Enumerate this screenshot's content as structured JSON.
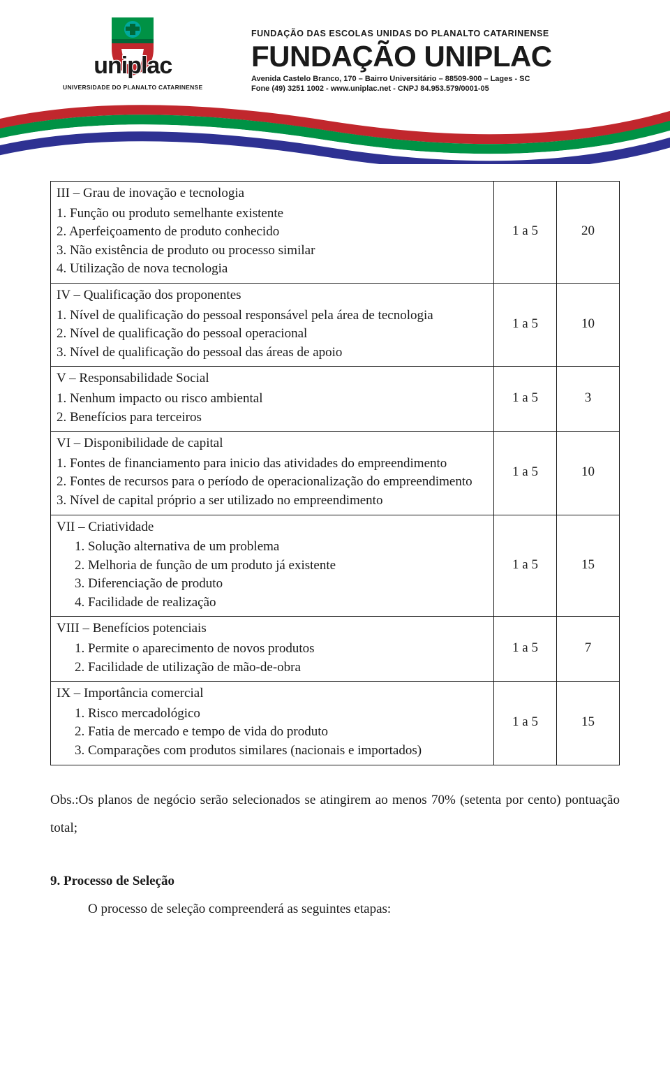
{
  "header": {
    "logo_text": "uniplac",
    "logo_subtitle": "UNIVERSIDADE DO PLANALTO CATARINENSE",
    "foundation_top": "FUNDAÇÃO DAS ESCOLAS UNIDAS DO PLANALTO CATARINENSE",
    "foundation_main": "FUNDAÇÃO UNIPLAC",
    "address_line1": "Avenida Castelo Branco, 170 – Bairro Universitário – 88509-900 – Lages - SC",
    "address_line2": "Fone (49) 3251 1002  -  www.uniplac.net  -  CNPJ 84.953.579/0001-05",
    "swoosh_colors": [
      "#c1272d",
      "#009245",
      "#2e3192",
      "#ffffff"
    ],
    "shield_colors": {
      "top": "#009245",
      "bottom": "#c1272d",
      "accent": "#006837",
      "bar": "#00a99d"
    }
  },
  "table": {
    "rows": [
      {
        "title": "III – Grau de inovação e tecnologia",
        "items": [
          "1.      Função ou produto semelhante existente",
          "2.      Aperfeiçoamento de produto conhecido",
          "3.      Não existência de produto ou processo similar",
          "4.      Utilização de nova tecnologia"
        ],
        "indent_class": "indent",
        "range": "1 a 5",
        "weight": "20"
      },
      {
        "title": "IV – Qualificação dos proponentes",
        "items": [
          "1.      Nível de qualificação do pessoal responsável pela área de tecnologia",
          "2.      Nível de qualificação do pessoal operacional",
          "3.      Nível de qualificação do pessoal das áreas de apoio"
        ],
        "indent_class": "indent",
        "range": "1 a 5",
        "weight": "10"
      },
      {
        "title": "V – Responsabilidade Social",
        "items": [
          "1.      Nenhum impacto ou risco ambiental",
          "2.      Benefícios para terceiros"
        ],
        "indent_class": "indent",
        "range": "1 a 5",
        "weight": "3"
      },
      {
        "title": "VI – Disponibilidade de capital",
        "items": [
          "1.      Fontes de financiamento para inicio das atividades do empreendimento",
          "2.      Fontes de recursos para o período de operacionalização do empreendimento",
          "3.      Nível de capital próprio a ser utilizado no empreendimento"
        ],
        "indent_class": "indent",
        "range": "1 a 5",
        "weight": "10"
      },
      {
        "title": "VII – Criatividade",
        "items": [
          "1.  Solução alternativa de um problema",
          "2.  Melhoria de função de um produto já existente",
          "3.  Diferenciação de produto",
          "4.  Facilidade de realização"
        ],
        "indent_class": "indent-more",
        "range": "1 a 5",
        "weight": "15"
      },
      {
        "title": "VIII – Benefícios potenciais",
        "items": [
          "1.  Permite o aparecimento de novos produtos",
          "2.  Facilidade de utilização de mão-de-obra"
        ],
        "indent_class": "indent-more",
        "range": "1 a 5",
        "weight": "7"
      },
      {
        "title": "IX – Importância comercial",
        "items": [
          "1.  Risco mercadológico",
          "2.  Fatia de mercado e tempo de vida do produto",
          "3.  Comparações com produtos similares (nacionais e importados)"
        ],
        "indent_class": "indent-more",
        "range": "1 a 5",
        "weight": "15"
      }
    ]
  },
  "obs": "Obs.:Os planos de negócio serão selecionados se atingirem ao menos 70% (setenta por cento) pontuação total;",
  "process": {
    "title": "9. Processo de Seleção",
    "body": "O processo de seleção compreenderá as seguintes etapas:"
  }
}
